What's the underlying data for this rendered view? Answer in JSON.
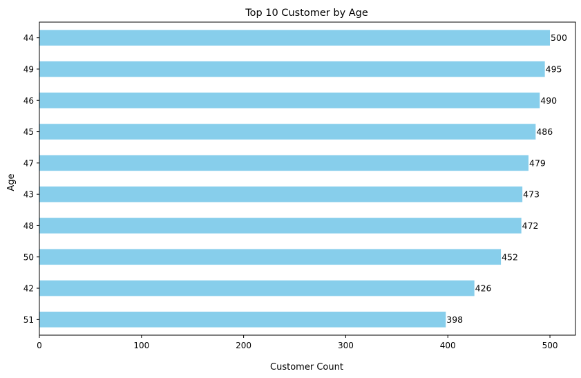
{
  "chart_data": {
    "type": "bar",
    "orientation": "horizontal",
    "title": "Top 10 Customer by Age",
    "xlabel": "Customer Count",
    "ylabel": "Age",
    "categories": [
      "44",
      "49",
      "46",
      "45",
      "47",
      "43",
      "48",
      "50",
      "42",
      "51"
    ],
    "values": [
      500,
      495,
      490,
      486,
      479,
      473,
      472,
      452,
      426,
      398
    ],
    "data_labels": [
      "500",
      "495",
      "490",
      "486",
      "479",
      "473",
      "472",
      "452",
      "426",
      "398"
    ],
    "xlim": [
      0,
      525
    ],
    "xticks": [
      0,
      100,
      200,
      300,
      400,
      500
    ],
    "xtick_labels": [
      "0",
      "100",
      "200",
      "300",
      "400",
      "500"
    ],
    "bar_color": "#87ceeb",
    "grid": false,
    "legend": "none"
  }
}
